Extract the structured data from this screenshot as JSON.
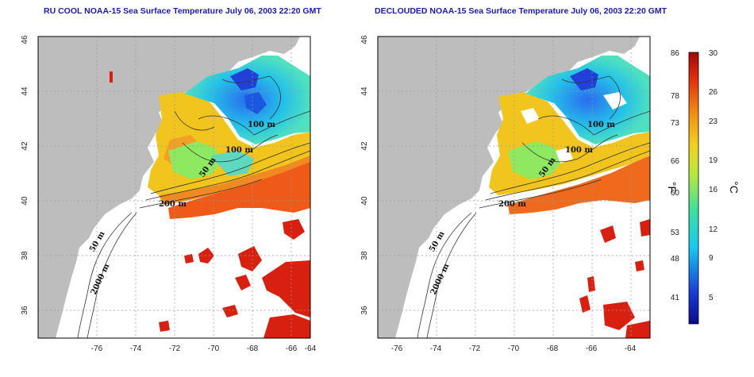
{
  "panels": [
    {
      "id": "ru-cool",
      "title": "RU COOL NOAA-15 Sea Surface Temperature July 06, 2003 22:20 GMT",
      "contour_labels": [
        "100 m",
        "100 m",
        "50 m",
        "200 m",
        "50 m",
        "2000 m"
      ]
    },
    {
      "id": "declouded",
      "title": "DECLOUDED NOAA-15 Sea Surface Temperature July 06, 2003 22:20 GMT",
      "contour_labels": [
        "100 m",
        "100 m",
        "50 m",
        "200 m",
        "50 m",
        "2000 m"
      ]
    }
  ],
  "axes": {
    "lon_ticks": [
      "-76",
      "-74",
      "-72",
      "-70",
      "-68",
      "-66",
      "-64"
    ],
    "lat_ticks": [
      "36",
      "38",
      "40",
      "42",
      "44",
      "46"
    ],
    "lon_range": [
      -77,
      -63
    ],
    "lat_range": [
      35,
      46
    ],
    "grid": "dotted"
  },
  "colorbar": {
    "fahrenheit_ticks": [
      "86",
      "78",
      "73",
      "66",
      "60",
      "53",
      "48",
      "41"
    ],
    "celsius_ticks": [
      "30",
      "26",
      "23",
      "19",
      "16",
      "12",
      "9",
      "5"
    ],
    "fahrenheit_unit": "°F",
    "celsius_unit": "°C",
    "range_c": [
      2,
      30
    ]
  },
  "colors": {
    "land": "#bdbdbd",
    "title": "#1a1aa6",
    "cold": "#1a3fd6",
    "mid": "#3fe0a0",
    "warm": "#f0d020",
    "hot": "#d82010"
  }
}
